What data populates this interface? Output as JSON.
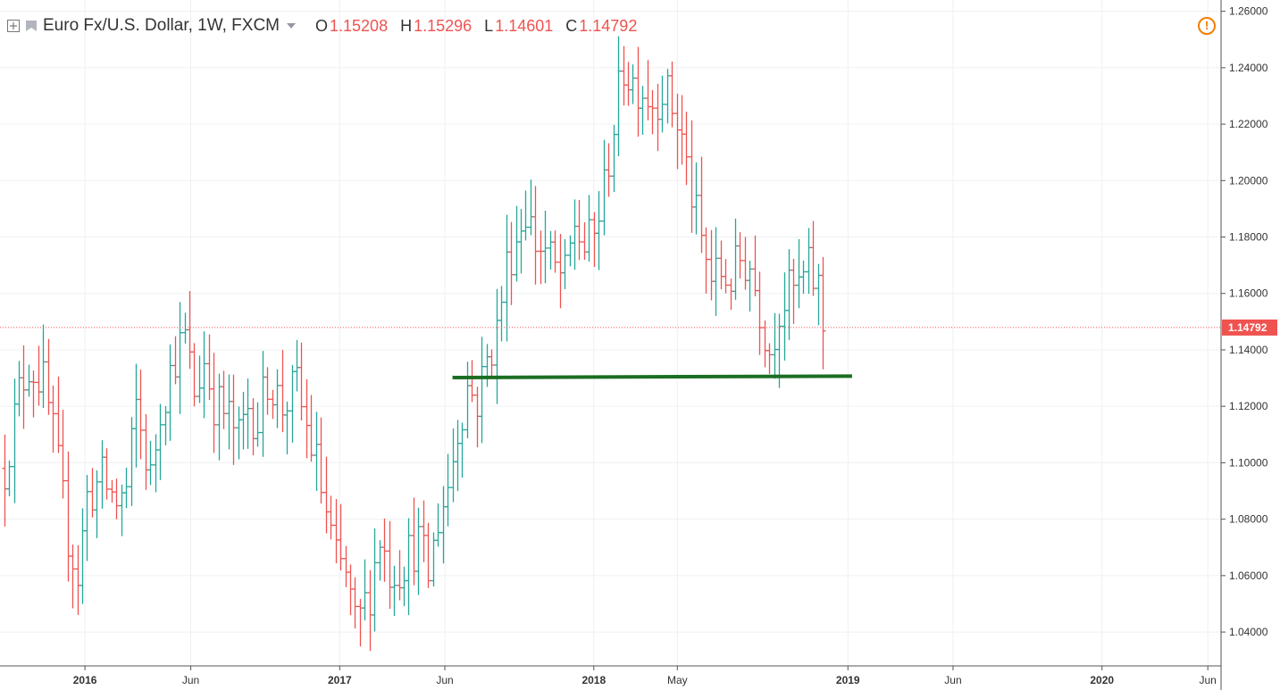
{
  "legend": {
    "symbol": "Euro Fx/U.S. Dollar, 1W, FXCM",
    "o_label": "O",
    "o_value": "1.15208",
    "h_label": "H",
    "h_value": "1.15296",
    "l_label": "L",
    "l_value": "1.14601",
    "c_label": "C",
    "c_value": "1.14792"
  },
  "icons": {
    "expand": "plus-square-icon",
    "flag": "flag-icon",
    "dropdown": "caret-down-icon",
    "alert": "exclamation-circle-icon"
  },
  "colors": {
    "up": "#26a69a",
    "down": "#ef5350",
    "support_line": "#1b6e22",
    "last_price": "#ef5350",
    "grid": "#eef0f3",
    "axis": "#555555"
  },
  "chart_data": {
    "type": "ohlc",
    "symbol": "Euro Fx/U.S. Dollar",
    "interval": "1W",
    "source": "FXCM",
    "ylim": [
      1.028,
      1.264
    ],
    "x_range": [
      "2015-09-01",
      "2020-06-20"
    ],
    "y_ticks": [
      "1.26000",
      "1.24000",
      "1.22000",
      "1.20000",
      "1.18000",
      "1.16000",
      "1.14000",
      "1.12000",
      "1.10000",
      "1.08000",
      "1.06000",
      "1.04000"
    ],
    "x_ticks": [
      {
        "date": "2016-01-01",
        "label": "2016",
        "bold": true
      },
      {
        "date": "2016-06-01",
        "label": "Jun",
        "bold": false
      },
      {
        "date": "2017-01-01",
        "label": "2017",
        "bold": true
      },
      {
        "date": "2017-06-01",
        "label": "Jun",
        "bold": false
      },
      {
        "date": "2018-01-01",
        "label": "2018",
        "bold": true
      },
      {
        "date": "2018-05-01",
        "label": "May",
        "bold": false
      },
      {
        "date": "2019-01-01",
        "label": "2019",
        "bold": true
      },
      {
        "date": "2019-06-01",
        "label": "Jun",
        "bold": false
      },
      {
        "date": "2020-01-01",
        "label": "2020",
        "bold": true
      },
      {
        "date": "2020-06-01",
        "label": "Jun",
        "bold": false
      }
    ],
    "last_price": "1.14792",
    "last_price_value": 1.14792,
    "support_line": {
      "start_date": "2017-06-12",
      "end_date": "2019-01-07",
      "y1": 1.1302,
      "y2": 1.1307
    },
    "bar_series": {
      "first_bar_date": "2015-09-07",
      "week_step_days": 7,
      "price_keypoints": [
        [
          0,
          1.098
        ],
        [
          3,
          1.125
        ],
        [
          5,
          1.135
        ],
        [
          8,
          1.128
        ],
        [
          10,
          1.11
        ],
        [
          13,
          1.074
        ],
        [
          15,
          1.06
        ],
        [
          17,
          1.088
        ],
        [
          20,
          1.094
        ],
        [
          23,
          1.086
        ],
        [
          25,
          1.09
        ],
        [
          27,
          1.12
        ],
        [
          30,
          1.094
        ],
        [
          32,
          1.12
        ],
        [
          35,
          1.138
        ],
        [
          37,
          1.144
        ],
        [
          39,
          1.125
        ],
        [
          41,
          1.136
        ],
        [
          43,
          1.122
        ],
        [
          46,
          1.116
        ],
        [
          48,
          1.108
        ],
        [
          50,
          1.12
        ],
        [
          52,
          1.115
        ],
        [
          54,
          1.13
        ],
        [
          57,
          1.12
        ],
        [
          60,
          1.127
        ],
        [
          62,
          1.112
        ],
        [
          64,
          1.1
        ],
        [
          66,
          1.082
        ],
        [
          68,
          1.065
        ],
        [
          70,
          1.06
        ],
        [
          72,
          1.042
        ],
        [
          73,
          1.045
        ],
        [
          75,
          1.055
        ],
        [
          77,
          1.074
        ],
        [
          79,
          1.062
        ],
        [
          81,
          1.063
        ],
        [
          83,
          1.068
        ],
        [
          85,
          1.072
        ],
        [
          87,
          1.06
        ],
        [
          89,
          1.08
        ],
        [
          91,
          1.092
        ],
        [
          93,
          1.112
        ],
        [
          95,
          1.127
        ],
        [
          97,
          1.122
        ],
        [
          99,
          1.136
        ],
        [
          101,
          1.147
        ],
        [
          103,
          1.17
        ],
        [
          105,
          1.18
        ],
        [
          107,
          1.19
        ],
        [
          109,
          1.178
        ],
        [
          111,
          1.175
        ],
        [
          113,
          1.168
        ],
        [
          115,
          1.165
        ],
        [
          117,
          1.185
        ],
        [
          119,
          1.176
        ],
        [
          121,
          1.18
        ],
        [
          123,
          1.197
        ],
        [
          125,
          1.22
        ],
        [
          127,
          1.24
        ],
        [
          129,
          1.235
        ],
        [
          131,
          1.233
        ],
        [
          133,
          1.228
        ],
        [
          135,
          1.233
        ],
        [
          137,
          1.226
        ],
        [
          139,
          1.215
        ],
        [
          141,
          1.195
        ],
        [
          143,
          1.178
        ],
        [
          145,
          1.165
        ],
        [
          147,
          1.167
        ],
        [
          149,
          1.165
        ],
        [
          151,
          1.172
        ],
        [
          153,
          1.17
        ],
        [
          155,
          1.155
        ],
        [
          157,
          1.14
        ],
        [
          159,
          1.155
        ],
        [
          161,
          1.16
        ],
        [
          163,
          1.162
        ],
        [
          165,
          1.168
        ],
        [
          167,
          1.162
        ],
        [
          168,
          1.148
        ]
      ]
    }
  }
}
